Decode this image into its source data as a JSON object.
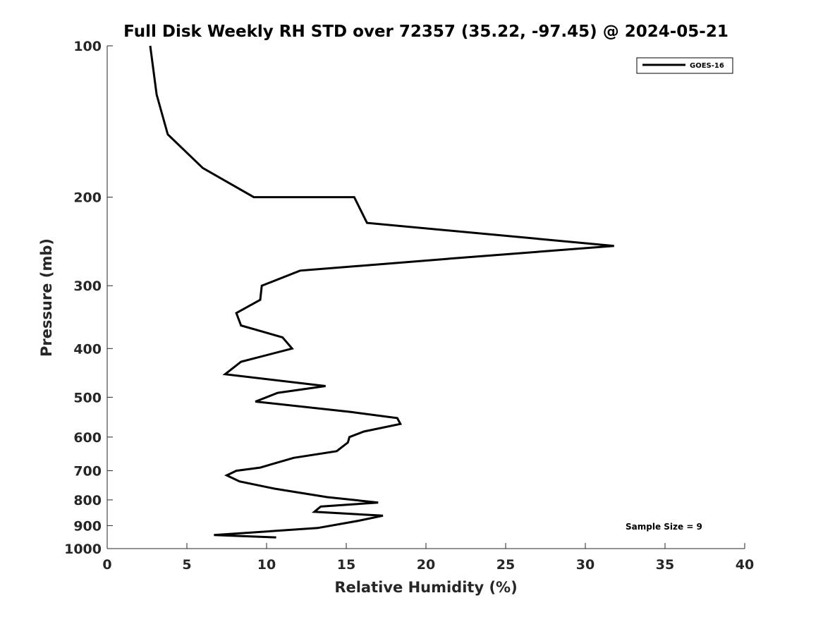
{
  "chart_data": {
    "type": "line",
    "title": "Full Disk Weekly RH STD over 72357 (35.22, -97.45) @ 2024-05-21",
    "xlabel": "Relative Humidity (%)",
    "ylabel": "Pressure (mb)",
    "xlim": [
      0,
      40
    ],
    "ylim": [
      100,
      1000
    ],
    "y_scale": "log",
    "y_reversed": true,
    "x_ticks": [
      0,
      5,
      10,
      15,
      20,
      25,
      30,
      35,
      40
    ],
    "y_ticks": [
      100,
      200,
      300,
      400,
      500,
      600,
      700,
      800,
      900,
      1000
    ],
    "grid": false,
    "legend_position": "top-right",
    "annotation": "Sample Size = 9",
    "series": [
      {
        "name": "GOES-16",
        "color": "#000000",
        "points": [
          [
            2.7,
            100
          ],
          [
            3.1,
            125
          ],
          [
            3.8,
            150
          ],
          [
            6.0,
            175
          ],
          [
            9.2,
            200
          ],
          [
            15.5,
            200
          ],
          [
            16.3,
            225
          ],
          [
            31.8,
            250
          ],
          [
            21.5,
            265
          ],
          [
            12.1,
            280
          ],
          [
            9.7,
            300
          ],
          [
            9.6,
            320
          ],
          [
            8.1,
            340
          ],
          [
            8.4,
            360
          ],
          [
            11.0,
            380
          ],
          [
            11.6,
            400
          ],
          [
            8.4,
            425
          ],
          [
            7.4,
            450
          ],
          [
            13.7,
            475
          ],
          [
            10.7,
            490
          ],
          [
            9.3,
            510
          ],
          [
            15.3,
            535
          ],
          [
            18.2,
            550
          ],
          [
            18.4,
            565
          ],
          [
            16.1,
            585
          ],
          [
            15.2,
            600
          ],
          [
            15.1,
            615
          ],
          [
            14.4,
            640
          ],
          [
            11.7,
            660
          ],
          [
            9.6,
            690
          ],
          [
            8.1,
            700
          ],
          [
            7.5,
            715
          ],
          [
            8.3,
            735
          ],
          [
            10.5,
            760
          ],
          [
            13.8,
            790
          ],
          [
            17.0,
            810
          ],
          [
            13.4,
            825
          ],
          [
            13.0,
            845
          ],
          [
            17.3,
            860
          ],
          [
            15.8,
            880
          ],
          [
            13.2,
            910
          ],
          [
            6.7,
            940
          ],
          [
            10.6,
            950
          ]
        ]
      }
    ]
  }
}
